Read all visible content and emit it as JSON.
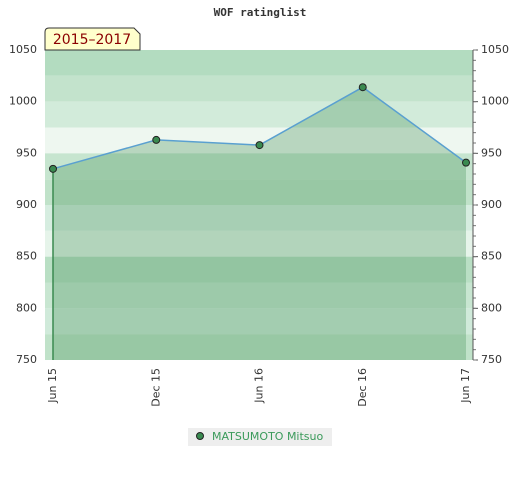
{
  "chart_data": {
    "type": "area",
    "title": "WOF ratinglist",
    "annotation": "2015–2017",
    "categories": [
      "Jun 15",
      "Dec 15",
      "Jun 16",
      "Dec 16",
      "Jun 17"
    ],
    "series": [
      {
        "name": "MATSUMOTO Mitsuo",
        "color": "#3a8a50",
        "values": [
          935,
          963,
          958,
          1014,
          941
        ]
      }
    ],
    "ylim": [
      750,
      1050
    ],
    "yticks": [
      750,
      800,
      850,
      900,
      950,
      1000,
      1050
    ]
  }
}
